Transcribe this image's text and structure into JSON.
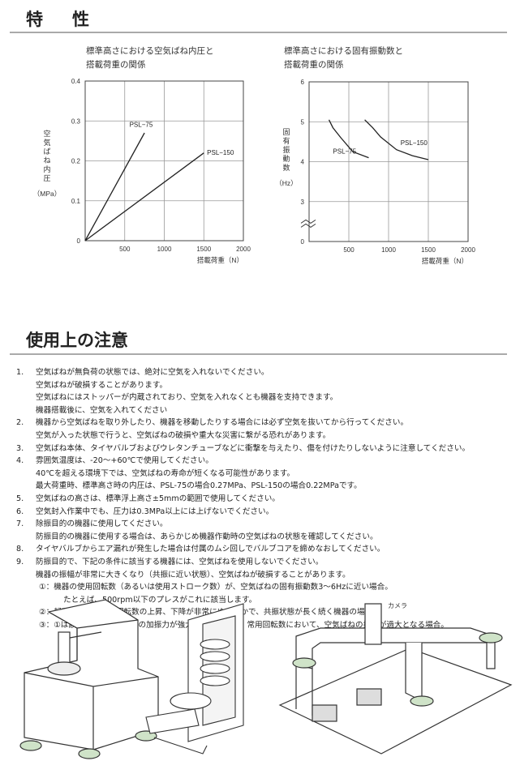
{
  "section1": {
    "title_a": "特",
    "title_b": "性"
  },
  "section2": {
    "title": "使用上の注意"
  },
  "chart_data": [
    {
      "type": "line",
      "title_lines": [
        "標準高さにおける空気ばね内圧と",
        "搭載荷重の関係"
      ],
      "xlabel": "搭載荷重（N）",
      "ylabel_chars": [
        "空",
        "気",
        "ば",
        "ね",
        "内",
        "圧"
      ],
      "ylabel_unit": "（MPa）",
      "xlim": [
        0,
        2000
      ],
      "ylim": [
        0,
        0.4
      ],
      "xticks": [
        "500",
        "1000",
        "1500",
        "2000"
      ],
      "yticks": [
        "0",
        "0.1",
        "0.2",
        "0.3",
        "0.4"
      ],
      "grid": true,
      "series": [
        {
          "name": "PSL−75",
          "x": [
            0,
            750
          ],
          "y": [
            0,
            0.27
          ]
        },
        {
          "name": "PSL−150",
          "x": [
            0,
            1500
          ],
          "y": [
            0,
            0.22
          ]
        }
      ]
    },
    {
      "type": "line",
      "title_lines": [
        "標準高さにおける固有振動数と",
        "搭載荷重の関係"
      ],
      "xlabel": "搭載荷重（N）",
      "ylabel_chars": [
        "固",
        "有",
        "振",
        "動",
        "数"
      ],
      "ylabel_unit": "（Hz）",
      "xlim": [
        0,
        2000
      ],
      "ylim": [
        3,
        6
      ],
      "axis_break": true,
      "xticks": [
        "500",
        "1000",
        "1500",
        "2000"
      ],
      "yticks": [
        "0",
        "3",
        "4",
        "5",
        "6"
      ],
      "grid": true,
      "series": [
        {
          "name": "PSL−75",
          "x": [
            250,
            300,
            400,
            550,
            750
          ],
          "y": [
            5.05,
            4.85,
            4.6,
            4.25,
            4.1
          ]
        },
        {
          "name": "PSL−150",
          "x": [
            700,
            800,
            900,
            1100,
            1300,
            1500
          ],
          "y": [
            5.05,
            4.85,
            4.62,
            4.3,
            4.15,
            4.05
          ]
        }
      ]
    }
  ],
  "notes": [
    {
      "num": "1.",
      "lines": [
        "空気ばねが無負荷の状態では、絶対に空気を入れないでください。",
        "空気ばねが破損することがあります。",
        "空気ばねにはストッパーが内蔵されており、空気を入れなくとも機器を支持できます。",
        "機器搭載後に、空気を入れてください"
      ]
    },
    {
      "num": "2.",
      "lines": [
        "機器から空気ばねを取り外したり、機器を移動したりする場合には必ず空気を抜いてから行ってください。",
        "空気が入った状態で行うと、空気ばねの破損や重大な災害に繋がる恐れがあります。"
      ]
    },
    {
      "num": "3.",
      "lines": [
        "空気ばね本体、タイヤバルブおよびウレタンチューブなどに衝撃を与えたり、傷を付けたりしないように注意してください。"
      ]
    },
    {
      "num": "4.",
      "lines": [
        "雰囲気温度は、-20～+60℃で使用してください。",
        "40℃を超える環境下では、空気ばねの寿命が短くなる可能性があります。",
        "最大荷重時、標準高さ時の内圧は、PSL-75の場合0.27MPa、PSL-150の場合0.22MPaです。"
      ]
    },
    {
      "num": "5.",
      "lines": [
        "空気ばねの高さは、標準浮上高さ±5mmの範囲で使用してください。"
      ]
    },
    {
      "num": "6.",
      "lines": [
        "空気封入作業中でも、圧力は0.3MPa以上には上げないでください。"
      ]
    },
    {
      "num": "7.",
      "lines": [
        "除振目的の機器に使用してください。",
        "防振目的の機器に使用する場合は、あらかじめ機器作動時の空気ばねの状態を確認してください。"
      ]
    },
    {
      "num": "8.",
      "lines": [
        "タイヤバルブからエア漏れが発生した場合は付属のムシ回しでバルブコアを締めなおしてください。"
      ]
    },
    {
      "num": "9.",
      "lines": [
        "防振目的で、下記の条件に該当する機器には、空気ばねを使用しないでください。",
        "機器の振幅が非常に大きくなり（共振に近い状態）、空気ばねが破損することがあります。"
      ],
      "subs": [
        {
          "text": "①：機器の使用回転数（あるいは使用ストローク数）が、空気ばねの固有振動数3～6Hzに近い場合。",
          "cont": "たとえば、500rpm以下のプレスがこれに該当します。"
        },
        {
          "text": "②：起動時、停止時の回転数の上昇、下降が非常にゆるやかで、共振状態が長く続く機器の場合。"
        },
        {
          "text": "③：①は該当しないが、機器の加振力が強大で、その結果、常用回転数において、空気ばねの振幅が過大となる場合。"
        }
      ]
    }
  ],
  "illustrations": {
    "camera_label": "カメラ",
    "spring_color": "#cfe3c8"
  }
}
